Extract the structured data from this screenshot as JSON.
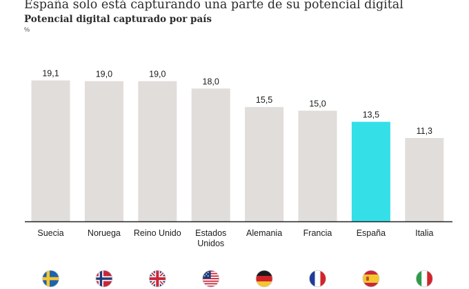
{
  "title": "España solo está capturando una parte de su potencial digital",
  "subtitle": "Potencial digital capturado por país",
  "unit": "%",
  "colors": {
    "bar": "#e1ddda",
    "highlight": "#35dfe8",
    "axis": "#222222"
  },
  "chart_data": {
    "type": "bar",
    "categories": [
      "Suecia",
      "Noruega",
      "Reino Unido",
      "Estados Unidos",
      "Alemania",
      "Francia",
      "España",
      "Italia"
    ],
    "category_lines": [
      [
        "Suecia"
      ],
      [
        "Noruega"
      ],
      [
        "Reino Unido"
      ],
      [
        "Estados",
        "Unidos"
      ],
      [
        "Alemania"
      ],
      [
        "Francia"
      ],
      [
        "España"
      ],
      [
        "Italia"
      ]
    ],
    "values": [
      19.1,
      19.0,
      19.0,
      18.0,
      15.5,
      15.0,
      13.5,
      11.3
    ],
    "value_labels": [
      "19,1",
      "19,0",
      "19,0",
      "18,0",
      "15,5",
      "15,0",
      "13,5",
      "11,3"
    ],
    "highlight_category": "España",
    "flag_icons": [
      "flag-sweden-icon",
      "flag-norway-icon",
      "flag-uk-icon",
      "flag-usa-icon",
      "flag-germany-icon",
      "flag-france-icon",
      "flag-spain-icon",
      "flag-italy-icon"
    ],
    "ylim": [
      0,
      20
    ],
    "grid": false,
    "legend": "none"
  }
}
